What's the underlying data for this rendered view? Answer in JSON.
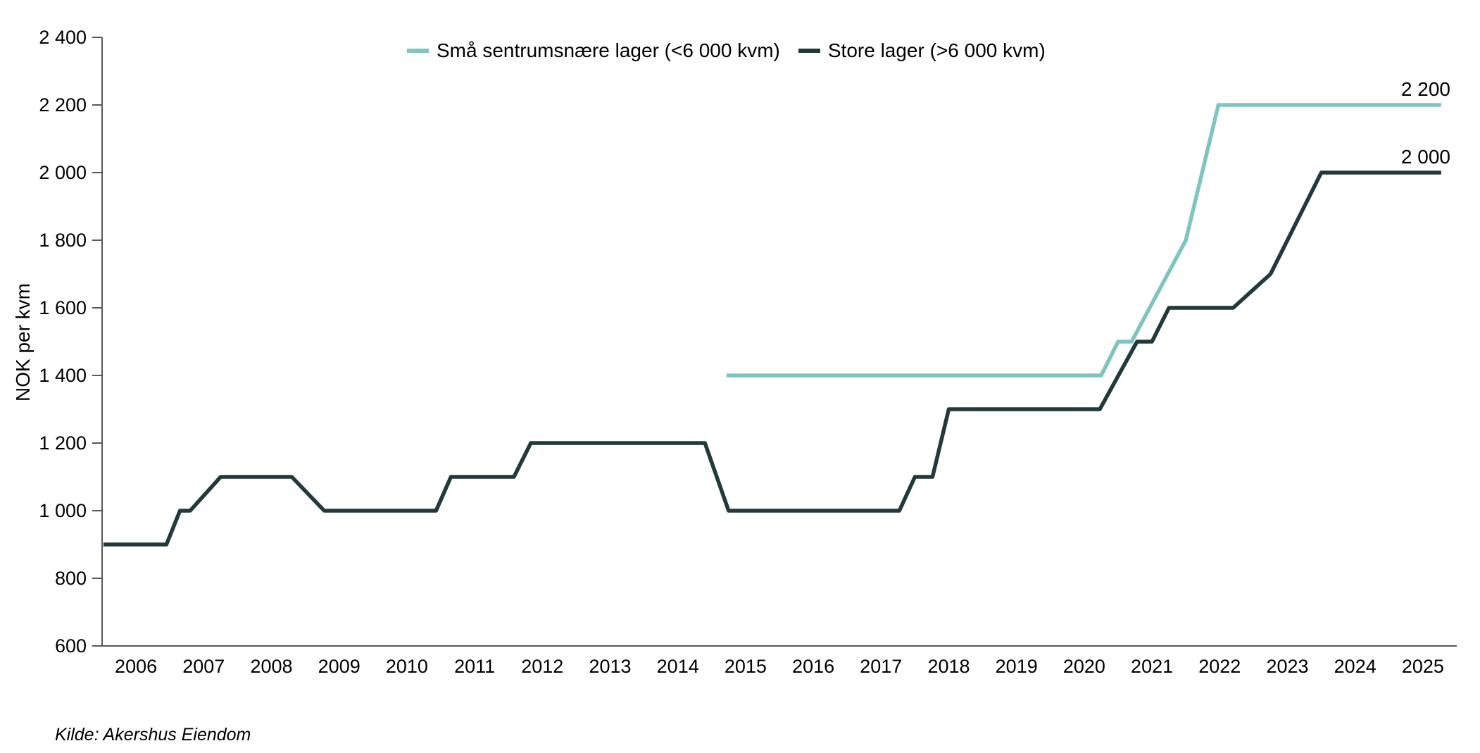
{
  "source": "Kilde: Akershus Eiendom",
  "chart_data": {
    "type": "line",
    "title": "",
    "xlabel": "",
    "ylabel": "NOK per kvm",
    "grid": false,
    "legend_position": "top-center",
    "x_domain": [
      2005.5,
      2025.5
    ],
    "y_domain": [
      600,
      2400
    ],
    "axis_color": "#595959",
    "text_color": "#000000",
    "background_color": "#ffffff",
    "y_ticks": [
      {
        "value": 600,
        "label": "600"
      },
      {
        "value": 800,
        "label": "800"
      },
      {
        "value": 1000,
        "label": "1 000"
      },
      {
        "value": 1200,
        "label": "1 200"
      },
      {
        "value": 1400,
        "label": "1 400"
      },
      {
        "value": 1600,
        "label": "1 600"
      },
      {
        "value": 1800,
        "label": "1 800"
      },
      {
        "value": 2000,
        "label": "2 000"
      },
      {
        "value": 2200,
        "label": "2 200"
      },
      {
        "value": 2400,
        "label": "2 400"
      }
    ],
    "x_ticks": [
      {
        "value": 2006,
        "label": "2006"
      },
      {
        "value": 2007,
        "label": "2007"
      },
      {
        "value": 2008,
        "label": "2008"
      },
      {
        "value": 2009,
        "label": "2009"
      },
      {
        "value": 2010,
        "label": "2010"
      },
      {
        "value": 2011,
        "label": "2011"
      },
      {
        "value": 2012,
        "label": "2012"
      },
      {
        "value": 2013,
        "label": "2013"
      },
      {
        "value": 2014,
        "label": "2014"
      },
      {
        "value": 2015,
        "label": "2015"
      },
      {
        "value": 2016,
        "label": "2016"
      },
      {
        "value": 2017,
        "label": "2017"
      },
      {
        "value": 2018,
        "label": "2018"
      },
      {
        "value": 2019,
        "label": "2019"
      },
      {
        "value": 2020,
        "label": "2020"
      },
      {
        "value": 2021,
        "label": "2021"
      },
      {
        "value": 2022,
        "label": "2022"
      },
      {
        "value": 2023,
        "label": "2023"
      },
      {
        "value": 2024,
        "label": "2024"
      },
      {
        "value": 2025,
        "label": "2025"
      }
    ],
    "series": [
      {
        "name": "Små sentrumsnære lager (<6 000 kvm)",
        "color": "#7EC5C0",
        "end_label": "2 200",
        "points": [
          [
            2014.72,
            1400
          ],
          [
            2020.25,
            1400
          ],
          [
            2020.5,
            1500
          ],
          [
            2020.7,
            1500
          ],
          [
            2021.5,
            1800
          ],
          [
            2021.98,
            2200
          ],
          [
            2025.27,
            2200
          ]
        ]
      },
      {
        "name": "Store lager (>6 000 kvm)",
        "color": "#21393B",
        "end_label": "2 000",
        "points": [
          [
            2005.52,
            900
          ],
          [
            2006.45,
            900
          ],
          [
            2006.65,
            1000
          ],
          [
            2006.8,
            1000
          ],
          [
            2007.25,
            1100
          ],
          [
            2008.3,
            1100
          ],
          [
            2008.78,
            1000
          ],
          [
            2010.43,
            1000
          ],
          [
            2010.65,
            1100
          ],
          [
            2011.58,
            1100
          ],
          [
            2011.83,
            1200
          ],
          [
            2014.4,
            1200
          ],
          [
            2014.75,
            1000
          ],
          [
            2017.27,
            1000
          ],
          [
            2017.5,
            1100
          ],
          [
            2017.76,
            1100
          ],
          [
            2018.0,
            1300
          ],
          [
            2020.23,
            1300
          ],
          [
            2020.78,
            1500
          ],
          [
            2021.0,
            1500
          ],
          [
            2021.25,
            1600
          ],
          [
            2022.2,
            1600
          ],
          [
            2022.75,
            1700
          ],
          [
            2023.5,
            2000
          ],
          [
            2025.27,
            2000
          ]
        ]
      }
    ]
  }
}
